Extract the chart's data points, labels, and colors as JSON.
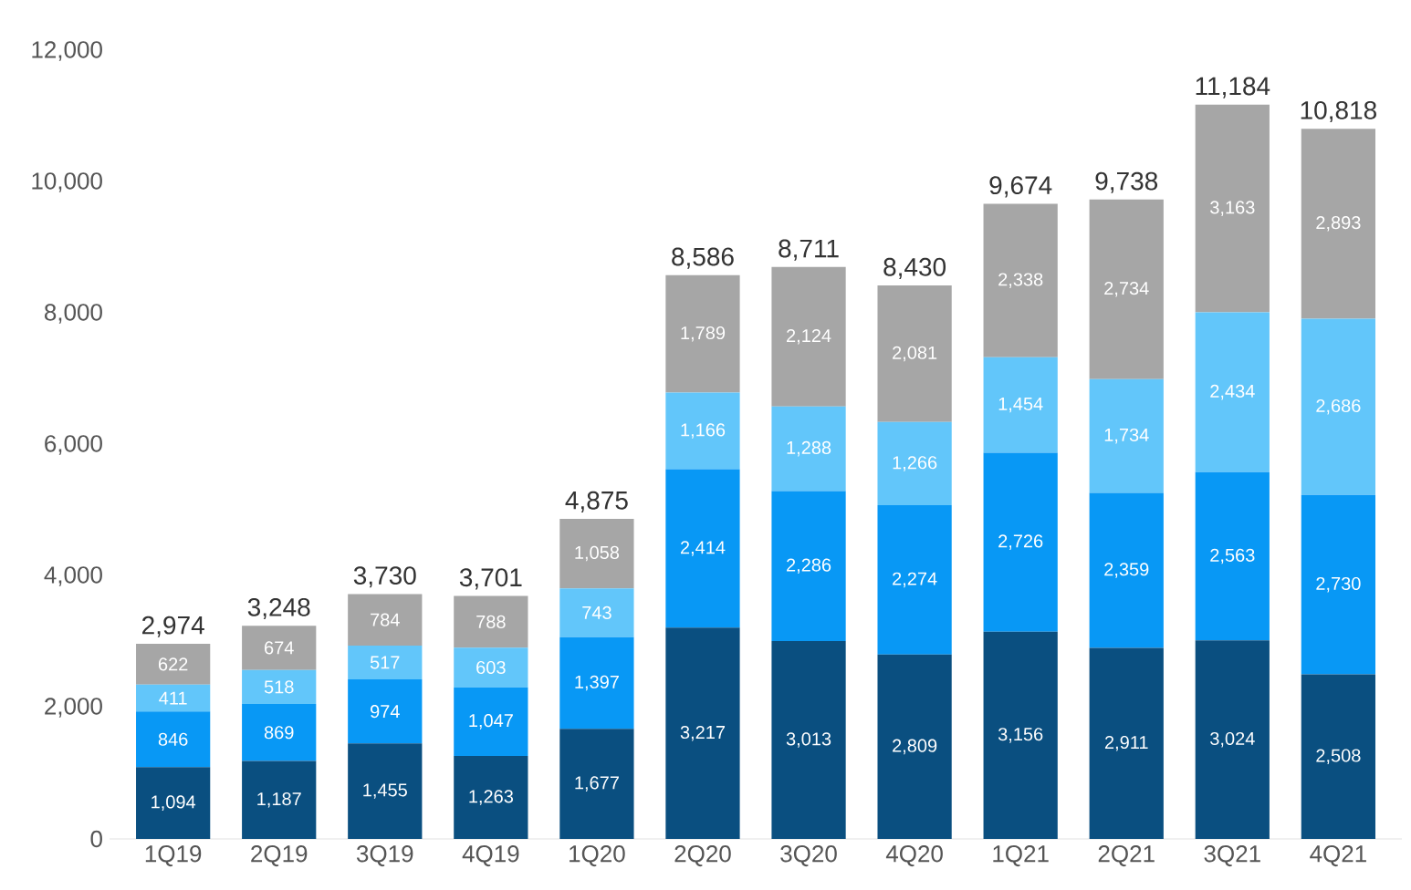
{
  "chart_data": {
    "type": "bar",
    "stacked": true,
    "categories": [
      "1Q19",
      "2Q19",
      "3Q19",
      "4Q19",
      "1Q20",
      "2Q20",
      "3Q20",
      "4Q20",
      "1Q21",
      "2Q21",
      "3Q21",
      "4Q21"
    ],
    "series": [
      {
        "color": "#0a4f80",
        "values": [
          1094,
          1187,
          1455,
          1263,
          1677,
          3217,
          3013,
          2809,
          3156,
          2911,
          3024,
          2508
        ],
        "value_labels": [
          "1,094",
          "1,187",
          "1,455",
          "1,263",
          "1,677",
          "3,217",
          "3,013",
          "2,809",
          "3,156",
          "2,911",
          "3,024",
          "2,508"
        ]
      },
      {
        "color": "#0898f5",
        "values": [
          846,
          869,
          974,
          1047,
          1397,
          2414,
          2286,
          2274,
          2726,
          2359,
          2563,
          2730
        ],
        "value_labels": [
          "846",
          "869",
          "974",
          "1,047",
          "1,397",
          "2,414",
          "2,286",
          "2,274",
          "2,726",
          "2,359",
          "2,563",
          "2,730"
        ]
      },
      {
        "color": "#62c6fa",
        "values": [
          411,
          518,
          517,
          603,
          743,
          1166,
          1288,
          1266,
          1454,
          1734,
          2434,
          2686
        ],
        "value_labels": [
          "411",
          "518",
          "517",
          "603",
          "743",
          "1,166",
          "1,288",
          "1,266",
          "1,454",
          "1,734",
          "2,434",
          "2,686"
        ]
      },
      {
        "color": "#a6a6a6",
        "values": [
          622,
          674,
          784,
          788,
          1058,
          1789,
          2124,
          2081,
          2338,
          2734,
          3163,
          2893
        ],
        "value_labels": [
          "622",
          "674",
          "784",
          "788",
          "1,058",
          "1,789",
          "2,124",
          "2,081",
          "2,338",
          "2,734",
          "3,163",
          "2,893"
        ]
      }
    ],
    "totals": [
      "2,974",
      "3,248",
      "3,730",
      "3,701",
      "4,875",
      "8,586",
      "8,711",
      "8,430",
      "9,674",
      "9,738",
      "11,184",
      "10,818"
    ],
    "ylim": [
      0,
      12000
    ],
    "yticks": [
      0,
      {
        "value": 2000,
        "label": "2,000"
      },
      {
        "value": 4000,
        "label": "4,000"
      },
      {
        "value": 6000,
        "label": "6,000"
      },
      {
        "value": 8000,
        "label": "8,000"
      },
      {
        "value": 10000,
        "label": "10,000"
      },
      {
        "value": 12000,
        "label": "12,000"
      }
    ]
  }
}
